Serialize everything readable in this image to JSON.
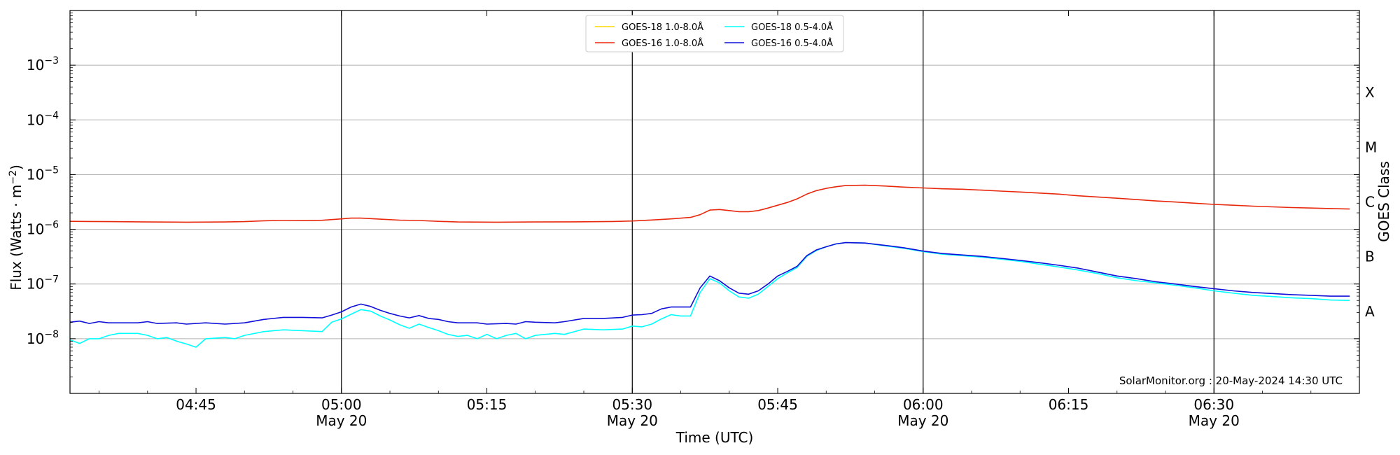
{
  "chart_data": {
    "type": "line",
    "ylabel_parts": [
      "Flux (Watts · m",
      "−2",
      ")"
    ],
    "xlabel": "Time (UTC)",
    "y2label": "GOES Class",
    "yscale": "log",
    "ylim_exp": [
      -9,
      -2
    ],
    "grid": "horizontal at decades",
    "legend_position": "top-center",
    "credit": "SolarMonitor.org : 20-May-2024 14:30 UTC",
    "xlim_min": [
      272,
      405
    ],
    "y_ticks": [
      {
        "base": "10",
        "exp": "−8",
        "value": -8
      },
      {
        "base": "10",
        "exp": "−7",
        "value": -7
      },
      {
        "base": "10",
        "exp": "−6",
        "value": -6
      },
      {
        "base": "10",
        "exp": "−5",
        "value": -5
      },
      {
        "base": "10",
        "exp": "−4",
        "value": -4
      },
      {
        "base": "10",
        "exp": "−3",
        "value": -3
      }
    ],
    "x_ticks": [
      {
        "t": 285,
        "label": "04:45",
        "date": ""
      },
      {
        "t": 300,
        "label": "05:00",
        "date": "May 20"
      },
      {
        "t": 315,
        "label": "05:15",
        "date": ""
      },
      {
        "t": 330,
        "label": "05:30",
        "date": "May 20"
      },
      {
        "t": 345,
        "label": "05:45",
        "date": ""
      },
      {
        "t": 360,
        "label": "06:00",
        "date": "May 20"
      },
      {
        "t": 375,
        "label": "06:15",
        "date": ""
      },
      {
        "t": 390,
        "label": "06:30",
        "date": "May 20"
      }
    ],
    "vlines": [
      300,
      330,
      360,
      390
    ],
    "classes": [
      {
        "label": "A",
        "value": -7.5
      },
      {
        "label": "B",
        "value": -6.5
      },
      {
        "label": "C",
        "value": -5.5
      },
      {
        "label": "M",
        "value": -4.5
      },
      {
        "label": "X",
        "value": -3.5
      }
    ],
    "series": [
      {
        "name": "GOES-18 1.0-8.0Å",
        "color": "#ffd700",
        "points": []
      },
      {
        "name": "GOES-16 1.0-8.0Å",
        "color": "#e8280c",
        "points": [
          [
            272,
            1.4e-06
          ],
          [
            276,
            1.38e-06
          ],
          [
            280,
            1.36e-06
          ],
          [
            284,
            1.35e-06
          ],
          [
            288,
            1.36e-06
          ],
          [
            290,
            1.38e-06
          ],
          [
            292,
            1.43e-06
          ],
          [
            294,
            1.45e-06
          ],
          [
            296,
            1.44e-06
          ],
          [
            298,
            1.46e-06
          ],
          [
            300,
            1.55e-06
          ],
          [
            301,
            1.6e-06
          ],
          [
            302,
            1.6e-06
          ],
          [
            304,
            1.53e-06
          ],
          [
            306,
            1.47e-06
          ],
          [
            308,
            1.45e-06
          ],
          [
            310,
            1.4e-06
          ],
          [
            312,
            1.36e-06
          ],
          [
            316,
            1.35e-06
          ],
          [
            320,
            1.36e-06
          ],
          [
            324,
            1.37e-06
          ],
          [
            328,
            1.39e-06
          ],
          [
            330,
            1.42e-06
          ],
          [
            332,
            1.48e-06
          ],
          [
            334,
            1.55e-06
          ],
          [
            336,
            1.65e-06
          ],
          [
            337,
            1.85e-06
          ],
          [
            338,
            2.25e-06
          ],
          [
            339,
            2.3e-06
          ],
          [
            340,
            2.2e-06
          ],
          [
            341,
            2.1e-06
          ],
          [
            342,
            2.1e-06
          ],
          [
            343,
            2.2e-06
          ],
          [
            344,
            2.45e-06
          ],
          [
            345,
            2.75e-06
          ],
          [
            346,
            3.1e-06
          ],
          [
            347,
            3.6e-06
          ],
          [
            348,
            4.4e-06
          ],
          [
            349,
            5.1e-06
          ],
          [
            350,
            5.6e-06
          ],
          [
            351,
            6e-06
          ],
          [
            352,
            6.3e-06
          ],
          [
            354,
            6.4e-06
          ],
          [
            356,
            6.2e-06
          ],
          [
            358,
            5.9e-06
          ],
          [
            360,
            5.7e-06
          ],
          [
            362,
            5.5e-06
          ],
          [
            364,
            5.4e-06
          ],
          [
            366,
            5.2e-06
          ],
          [
            368,
            5e-06
          ],
          [
            370,
            4.8e-06
          ],
          [
            372,
            4.6e-06
          ],
          [
            374,
            4.4e-06
          ],
          [
            376,
            4.1e-06
          ],
          [
            378,
            3.9e-06
          ],
          [
            380,
            3.7e-06
          ],
          [
            382,
            3.5e-06
          ],
          [
            384,
            3.3e-06
          ],
          [
            386,
            3.15e-06
          ],
          [
            388,
            3e-06
          ],
          [
            390,
            2.85e-06
          ],
          [
            392,
            2.75e-06
          ],
          [
            394,
            2.65e-06
          ],
          [
            396,
            2.57e-06
          ],
          [
            398,
            2.5e-06
          ],
          [
            400,
            2.45e-06
          ],
          [
            402,
            2.4e-06
          ],
          [
            404,
            2.35e-06
          ]
        ]
      },
      {
        "name": "GOES-18 0.5-4.0Å",
        "color": "#00ffff",
        "points": [
          [
            272,
            9.5e-09
          ],
          [
            273,
            8.2e-09
          ],
          [
            274,
            1e-08
          ],
          [
            275,
            1e-08
          ],
          [
            276,
            1.15e-08
          ],
          [
            277,
            1.25e-08
          ],
          [
            279,
            1.25e-08
          ],
          [
            280,
            1.15e-08
          ],
          [
            281,
            1e-08
          ],
          [
            282,
            1.05e-08
          ],
          [
            283,
            9e-09
          ],
          [
            284,
            8e-09
          ],
          [
            285,
            7e-09
          ],
          [
            286,
            1e-08
          ],
          [
            288,
            1.05e-08
          ],
          [
            289,
            1e-08
          ],
          [
            290,
            1.15e-08
          ],
          [
            292,
            1.35e-08
          ],
          [
            294,
            1.45e-08
          ],
          [
            296,
            1.4e-08
          ],
          [
            298,
            1.35e-08
          ],
          [
            299,
            2e-08
          ],
          [
            300,
            2.3e-08
          ],
          [
            301,
            2.8e-08
          ],
          [
            302,
            3.4e-08
          ],
          [
            303,
            3.2e-08
          ],
          [
            304,
            2.6e-08
          ],
          [
            305,
            2.2e-08
          ],
          [
            306,
            1.8e-08
          ],
          [
            307,
            1.55e-08
          ],
          [
            308,
            1.85e-08
          ],
          [
            309,
            1.6e-08
          ],
          [
            310,
            1.4e-08
          ],
          [
            311,
            1.2e-08
          ],
          [
            312,
            1.1e-08
          ],
          [
            313,
            1.15e-08
          ],
          [
            314,
            1e-08
          ],
          [
            315,
            1.2e-08
          ],
          [
            316,
            1e-08
          ],
          [
            317,
            1.15e-08
          ],
          [
            318,
            1.25e-08
          ],
          [
            319,
            1e-08
          ],
          [
            320,
            1.15e-08
          ],
          [
            322,
            1.25e-08
          ],
          [
            323,
            1.2e-08
          ],
          [
            325,
            1.5e-08
          ],
          [
            327,
            1.45e-08
          ],
          [
            329,
            1.5e-08
          ],
          [
            330,
            1.7e-08
          ],
          [
            331,
            1.65e-08
          ],
          [
            332,
            1.85e-08
          ],
          [
            333,
            2.3e-08
          ],
          [
            334,
            2.75e-08
          ],
          [
            335,
            2.6e-08
          ],
          [
            336,
            2.6e-08
          ],
          [
            337,
            7e-08
          ],
          [
            338,
            1.25e-07
          ],
          [
            339,
            1.05e-07
          ],
          [
            340,
            7.5e-08
          ],
          [
            341,
            5.8e-08
          ],
          [
            342,
            5.5e-08
          ],
          [
            343,
            6.5e-08
          ],
          [
            344,
            9e-08
          ],
          [
            345,
            1.25e-07
          ],
          [
            346,
            1.6e-07
          ],
          [
            347,
            2e-07
          ],
          [
            348,
            3.2e-07
          ],
          [
            349,
            4.1e-07
          ],
          [
            350,
            4.8e-07
          ],
          [
            351,
            5.4e-07
          ],
          [
            352,
            5.7e-07
          ],
          [
            354,
            5.6e-07
          ],
          [
            356,
            5e-07
          ],
          [
            358,
            4.5e-07
          ],
          [
            360,
            3.9e-07
          ],
          [
            362,
            3.5e-07
          ],
          [
            364,
            3.3e-07
          ],
          [
            366,
            3.1e-07
          ],
          [
            368,
            2.85e-07
          ],
          [
            370,
            2.6e-07
          ],
          [
            372,
            2.3e-07
          ],
          [
            374,
            2.05e-07
          ],
          [
            376,
            1.8e-07
          ],
          [
            378,
            1.55e-07
          ],
          [
            380,
            1.3e-07
          ],
          [
            382,
            1.15e-07
          ],
          [
            384,
            1.05e-07
          ],
          [
            386,
            9.5e-08
          ],
          [
            388,
            8.5e-08
          ],
          [
            390,
            7.5e-08
          ],
          [
            392,
            6.8e-08
          ],
          [
            394,
            6.2e-08
          ],
          [
            396,
            5.9e-08
          ],
          [
            398,
            5.6e-08
          ],
          [
            400,
            5.4e-08
          ],
          [
            402,
            5.1e-08
          ],
          [
            404,
            5e-08
          ]
        ]
      },
      {
        "name": "GOES-16 0.5-4.0Å",
        "color": "#1010d8",
        "points": [
          [
            272,
            2e-08
          ],
          [
            273,
            2.1e-08
          ],
          [
            274,
            1.9e-08
          ],
          [
            275,
            2.05e-08
          ],
          [
            276,
            1.95e-08
          ],
          [
            277,
            1.95e-08
          ],
          [
            279,
            1.95e-08
          ],
          [
            280,
            2.05e-08
          ],
          [
            281,
            1.9e-08
          ],
          [
            283,
            1.95e-08
          ],
          [
            284,
            1.85e-08
          ],
          [
            286,
            1.95e-08
          ],
          [
            288,
            1.85e-08
          ],
          [
            290,
            1.95e-08
          ],
          [
            292,
            2.25e-08
          ],
          [
            294,
            2.45e-08
          ],
          [
            296,
            2.45e-08
          ],
          [
            298,
            2.4e-08
          ],
          [
            299,
            2.7e-08
          ],
          [
            300,
            3.1e-08
          ],
          [
            301,
            3.8e-08
          ],
          [
            302,
            4.3e-08
          ],
          [
            303,
            3.9e-08
          ],
          [
            304,
            3.3e-08
          ],
          [
            305,
            2.9e-08
          ],
          [
            306,
            2.6e-08
          ],
          [
            307,
            2.4e-08
          ],
          [
            308,
            2.65e-08
          ],
          [
            309,
            2.35e-08
          ],
          [
            310,
            2.25e-08
          ],
          [
            311,
            2.05e-08
          ],
          [
            312,
            1.95e-08
          ],
          [
            314,
            1.95e-08
          ],
          [
            315,
            1.85e-08
          ],
          [
            317,
            1.9e-08
          ],
          [
            318,
            1.85e-08
          ],
          [
            319,
            2.05e-08
          ],
          [
            320,
            2e-08
          ],
          [
            322,
            1.95e-08
          ],
          [
            323,
            2.05e-08
          ],
          [
            325,
            2.35e-08
          ],
          [
            327,
            2.35e-08
          ],
          [
            329,
            2.45e-08
          ],
          [
            330,
            2.7e-08
          ],
          [
            331,
            2.75e-08
          ],
          [
            332,
            2.9e-08
          ],
          [
            333,
            3.5e-08
          ],
          [
            334,
            3.8e-08
          ],
          [
            335,
            3.8e-08
          ],
          [
            336,
            3.8e-08
          ],
          [
            337,
            8.5e-08
          ],
          [
            338,
            1.4e-07
          ],
          [
            339,
            1.15e-07
          ],
          [
            340,
            8.5e-08
          ],
          [
            341,
            6.8e-08
          ],
          [
            342,
            6.5e-08
          ],
          [
            343,
            7.5e-08
          ],
          [
            344,
            1e-07
          ],
          [
            345,
            1.4e-07
          ],
          [
            346,
            1.7e-07
          ],
          [
            347,
            2.1e-07
          ],
          [
            348,
            3.3e-07
          ],
          [
            349,
            4.2e-07
          ],
          [
            350,
            4.8e-07
          ],
          [
            351,
            5.4e-07
          ],
          [
            352,
            5.7e-07
          ],
          [
            354,
            5.6e-07
          ],
          [
            356,
            5.1e-07
          ],
          [
            358,
            4.6e-07
          ],
          [
            360,
            4e-07
          ],
          [
            362,
            3.6e-07
          ],
          [
            364,
            3.4e-07
          ],
          [
            366,
            3.2e-07
          ],
          [
            368,
            2.95e-07
          ],
          [
            370,
            2.7e-07
          ],
          [
            372,
            2.45e-07
          ],
          [
            374,
            2.2e-07
          ],
          [
            376,
            1.95e-07
          ],
          [
            378,
            1.65e-07
          ],
          [
            380,
            1.4e-07
          ],
          [
            382,
            1.25e-07
          ],
          [
            384,
            1.1e-07
          ],
          [
            386,
            1e-07
          ],
          [
            388,
            9e-08
          ],
          [
            390,
            8.2e-08
          ],
          [
            392,
            7.5e-08
          ],
          [
            394,
            7e-08
          ],
          [
            396,
            6.7e-08
          ],
          [
            398,
            6.4e-08
          ],
          [
            400,
            6.2e-08
          ],
          [
            402,
            6e-08
          ],
          [
            404,
            6e-08
          ]
        ]
      }
    ]
  }
}
